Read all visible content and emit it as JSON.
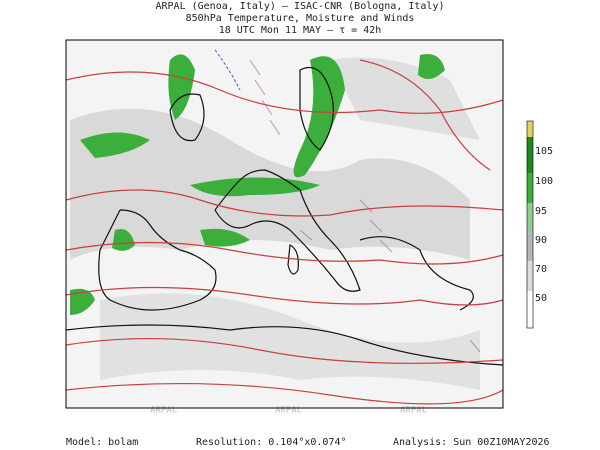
{
  "header": {
    "line1": "ARPAL (Genoa, Italy)  –  ISAC-CNR (Bologna, Italy)",
    "line2": "850hPa Temperature, Moisture and Winds",
    "line3": "18 UTC Mon 11 MAY  –  τ = 42h"
  },
  "colorbar": {
    "labels": [
      "105",
      "100",
      "95",
      "90",
      "70",
      "50"
    ]
  },
  "watermark": "ARPAL",
  "footer": {
    "model": "Model: bolam",
    "resolution": "Resolution: 0.104°x0.074°",
    "analysis": "Analysis: Sun 00Z10MAY2026"
  }
}
